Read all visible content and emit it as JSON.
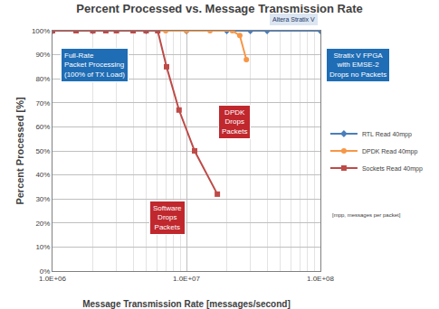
{
  "chart_data": {
    "type": "line",
    "title": "Percent Processed vs. Message Transmission Rate",
    "x_label": "Message Transmission Rate [messages/second]",
    "y_label": "Percent Processed [%]",
    "log": "x",
    "grid": true,
    "legend": "right",
    "xlim": [
      1000000,
      100000000
    ],
    "xticks": [
      {
        "value": 1000000,
        "label": "1.0E+06"
      },
      {
        "value": 10000000,
        "label": "1.0E+07"
      },
      {
        "value": 100000000,
        "label": "1.0E+08"
      }
    ],
    "ylim": [
      0,
      100
    ],
    "yticks": [
      {
        "value": 0,
        "label": "0%"
      },
      {
        "value": 10,
        "label": "10%"
      },
      {
        "value": 20,
        "label": "20%"
      },
      {
        "value": 30,
        "label": "30%"
      },
      {
        "value": 40,
        "label": "40%"
      },
      {
        "value": 50,
        "label": "50%"
      },
      {
        "value": 60,
        "label": "60%"
      },
      {
        "value": 70,
        "label": "70%"
      },
      {
        "value": 80,
        "label": "80%"
      },
      {
        "value": 90,
        "label": "90%"
      },
      {
        "value": 100,
        "label": "100%"
      }
    ],
    "series": [
      {
        "name": "RTL Read 40mpp",
        "color": "#4a7ebb",
        "marker": "diamond",
        "x": [
          1000000,
          2000000,
          5000000,
          10000000,
          20000000,
          30000000,
          40000000,
          100000000
        ],
        "values": [
          100,
          100,
          100,
          100,
          100,
          100,
          100,
          100
        ]
      },
      {
        "name": "DPDK Read 40mpp",
        "color": "#f79646",
        "marker": "circle",
        "x": [
          1000000,
          1500000,
          2000000,
          3000000,
          4000000,
          5000000,
          7000000,
          10000000,
          15000000,
          22000000,
          25000000,
          28000000
        ],
        "values": [
          100,
          100,
          100,
          100,
          100,
          100,
          100,
          100,
          100,
          100,
          98,
          88
        ]
      },
      {
        "name": "Sockets Read 40mpp",
        "color": "#be4b48",
        "marker": "square",
        "x": [
          1000000,
          1500000,
          2000000,
          2500000,
          3000000,
          4000000,
          5000000,
          6100000,
          7100000,
          8800000,
          11500000,
          17000000
        ],
        "values": [
          100,
          100,
          100,
          100,
          100,
          100,
          100,
          100,
          85,
          67,
          50,
          32
        ]
      }
    ],
    "annotations": [
      "Full-Rate\nPacket Processing\n(100% of TX Load)",
      "DPDK\nDrops\nPackets",
      "Software\nDrops\nPackets",
      "Stratix V FPGA\nwith EMSE-2\nDrops no Packets",
      "Altera Stratix V",
      "[mpp, messages per packet]"
    ]
  }
}
